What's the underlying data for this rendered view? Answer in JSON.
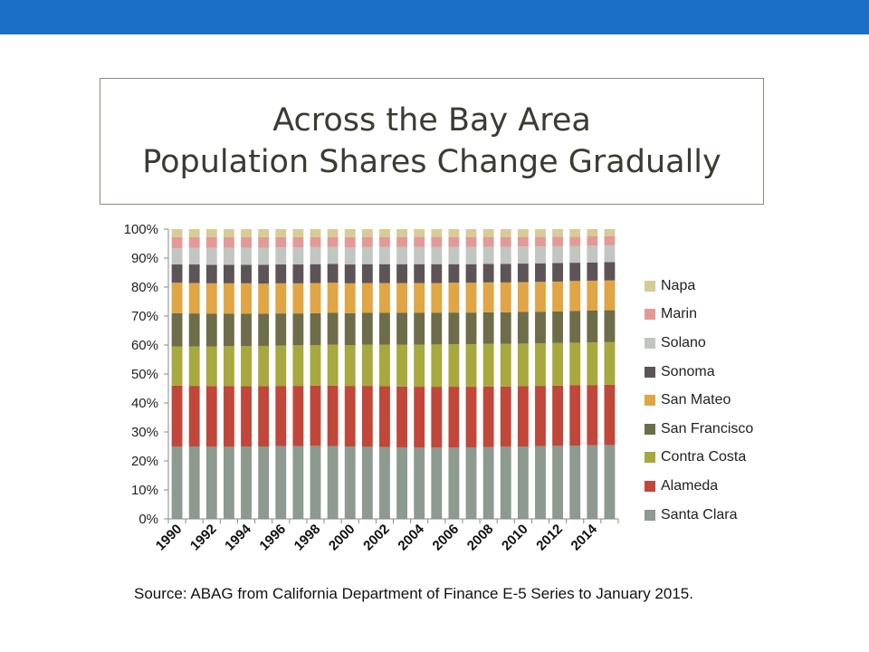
{
  "slide": {
    "accent_color": "#1a6fc4",
    "title_line1": "Across the Bay Area",
    "title_line2": "Population Shares Change Gradually",
    "source": "Source: ABAG from California Department of Finance E-5 Series to January 2015."
  },
  "chart_data": {
    "type": "bar",
    "stacked": "percent",
    "x": [
      1990,
      1991,
      1992,
      1993,
      1994,
      1995,
      1996,
      1997,
      1998,
      1999,
      2000,
      2001,
      2002,
      2003,
      2004,
      2005,
      2006,
      2007,
      2008,
      2009,
      2010,
      2011,
      2012,
      2013,
      2014,
      2015
    ],
    "x_tick_labels": [
      "1990",
      "1992",
      "1994",
      "1996",
      "1998",
      "2000",
      "2002",
      "2004",
      "2006",
      "2008",
      "2010",
      "2012",
      "2014"
    ],
    "y_tick_labels": [
      "0%",
      "10%",
      "20%",
      "30%",
      "40%",
      "50%",
      "60%",
      "70%",
      "80%",
      "90%",
      "100%"
    ],
    "ylim": [
      0,
      100
    ],
    "legend_position": "right",
    "series": [
      {
        "name": "Santa Clara",
        "color": "#8c9a8f",
        "values": [
          25.0,
          25.0,
          24.9,
          24.9,
          25.0,
          25.0,
          25.1,
          25.1,
          25.2,
          25.1,
          25.0,
          24.9,
          24.8,
          24.7,
          24.6,
          24.6,
          24.6,
          24.7,
          24.8,
          24.9,
          25.0,
          25.1,
          25.2,
          25.3,
          25.4,
          25.5
        ]
      },
      {
        "name": "Alameda",
        "color": "#c0473a",
        "values": [
          21.0,
          20.9,
          20.9,
          20.9,
          20.8,
          20.8,
          20.8,
          20.8,
          20.8,
          20.9,
          20.9,
          21.0,
          21.0,
          21.0,
          21.0,
          21.0,
          21.0,
          20.9,
          20.9,
          20.8,
          20.8,
          20.8,
          20.8,
          20.8,
          20.8,
          20.8
        ]
      },
      {
        "name": "Contra Costa",
        "color": "#a7a83e",
        "values": [
          13.5,
          13.6,
          13.7,
          13.8,
          13.8,
          13.9,
          13.9,
          14.0,
          14.0,
          14.1,
          14.1,
          14.2,
          14.3,
          14.4,
          14.5,
          14.6,
          14.7,
          14.7,
          14.7,
          14.7,
          14.7,
          14.7,
          14.7,
          14.7,
          14.7,
          14.7
        ]
      },
      {
        "name": "San Francisco",
        "color": "#6d6d4a",
        "values": [
          11.5,
          11.4,
          11.3,
          11.2,
          11.2,
          11.1,
          11.1,
          11.0,
          11.0,
          11.0,
          11.0,
          11.0,
          11.0,
          11.0,
          11.0,
          10.9,
          10.9,
          10.9,
          10.9,
          10.9,
          10.9,
          10.9,
          10.9,
          11.0,
          11.0,
          11.0
        ]
      },
      {
        "name": "San Mateo",
        "color": "#e0a544",
        "values": [
          10.5,
          10.5,
          10.5,
          10.5,
          10.5,
          10.4,
          10.4,
          10.4,
          10.4,
          10.4,
          10.3,
          10.3,
          10.3,
          10.3,
          10.3,
          10.3,
          10.3,
          10.3,
          10.3,
          10.3,
          10.3,
          10.3,
          10.3,
          10.3,
          10.3,
          10.3
        ]
      },
      {
        "name": "Sonoma",
        "color": "#5d5458",
        "values": [
          6.3,
          6.4,
          6.4,
          6.4,
          6.4,
          6.5,
          6.5,
          6.5,
          6.5,
          6.5,
          6.5,
          6.5,
          6.5,
          6.5,
          6.5,
          6.5,
          6.4,
          6.4,
          6.4,
          6.4,
          6.4,
          6.4,
          6.4,
          6.3,
          6.3,
          6.3
        ]
      },
      {
        "name": "Solano",
        "color": "#c2c6c0",
        "values": [
          5.6,
          5.7,
          5.8,
          5.9,
          5.9,
          5.9,
          5.9,
          5.9,
          5.9,
          5.9,
          5.9,
          5.9,
          6.0,
          6.0,
          6.0,
          6.0,
          6.0,
          6.0,
          5.9,
          5.9,
          5.9,
          5.8,
          5.8,
          5.8,
          5.8,
          5.8
        ]
      },
      {
        "name": "Marin",
        "color": "#e39a97",
        "values": [
          3.8,
          3.7,
          3.7,
          3.6,
          3.6,
          3.6,
          3.5,
          3.5,
          3.4,
          3.3,
          3.5,
          3.5,
          3.4,
          3.4,
          3.4,
          3.4,
          3.4,
          3.4,
          3.4,
          3.4,
          3.3,
          3.3,
          3.3,
          3.2,
          3.2,
          3.2
        ]
      },
      {
        "name": "Napa",
        "color": "#d6cc96",
        "values": [
          2.8,
          2.8,
          2.8,
          2.8,
          2.8,
          2.8,
          2.8,
          2.8,
          2.8,
          2.8,
          2.8,
          2.7,
          2.7,
          2.7,
          2.7,
          2.7,
          2.7,
          2.7,
          2.7,
          2.7,
          2.7,
          2.7,
          2.6,
          2.6,
          2.5,
          2.4
        ]
      }
    ]
  }
}
